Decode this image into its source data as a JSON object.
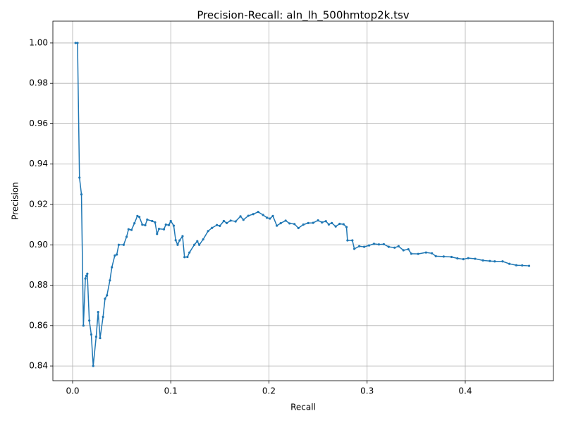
{
  "chart_data": {
    "type": "line",
    "title": "Precision-Recall: aln_lh_500hmtop2k.tsv",
    "x_label": "Recall",
    "y_label": "Precision",
    "xlim": [
      -0.0201,
      0.4898
    ],
    "ylim": [
      0.8327,
      1.0108
    ],
    "xticks": [
      {
        "value": 0,
        "label": "0.0"
      },
      0.1,
      0.2,
      0.3,
      0.4
    ],
    "yticks": [
      0.84,
      0.86,
      0.88,
      {
        "value": 0.9,
        "label": "0.90"
      },
      0.92,
      0.94,
      0.96,
      0.98,
      {
        "value": 1.0,
        "label": "1.00"
      }
    ],
    "grid": true,
    "markers": true,
    "series": [
      {
        "color": "#1f77b4",
        "x": [
          0.003,
          0.005,
          0.007,
          0.009,
          0.011,
          0.013,
          0.014,
          0.015,
          0.017,
          0.019,
          0.021,
          0.024,
          0.026,
          0.028,
          0.031,
          0.033,
          0.035,
          0.038,
          0.04,
          0.043,
          0.045,
          0.047,
          0.052,
          0.055,
          0.057,
          0.06,
          0.063,
          0.066,
          0.068,
          0.071,
          0.074,
          0.076,
          0.081,
          0.084,
          0.086,
          0.088,
          0.093,
          0.095,
          0.098,
          0.1,
          0.103,
          0.105,
          0.107,
          0.109,
          0.112,
          0.114,
          0.117,
          0.119,
          0.124,
          0.127,
          0.129,
          0.133,
          0.138,
          0.142,
          0.147,
          0.15,
          0.154,
          0.157,
          0.161,
          0.166,
          0.171,
          0.174,
          0.179,
          0.184,
          0.189,
          0.194,
          0.198,
          0.201,
          0.204,
          0.208,
          0.212,
          0.217,
          0.221,
          0.226,
          0.23,
          0.235,
          0.24,
          0.245,
          0.25,
          0.254,
          0.258,
          0.261,
          0.264,
          0.268,
          0.272,
          0.276,
          0.279,
          0.28,
          0.285,
          0.287,
          0.292,
          0.297,
          0.302,
          0.307,
          0.312,
          0.317,
          0.322,
          0.328,
          0.332,
          0.337,
          0.342,
          0.345,
          0.352,
          0.36,
          0.366,
          0.37,
          0.378,
          0.386,
          0.392,
          0.398,
          0.403,
          0.41,
          0.418,
          0.425,
          0.43,
          0.438,
          0.445,
          0.452,
          0.458,
          0.465
        ],
        "values": [
          1.0,
          1.0,
          0.9333,
          0.925,
          0.86,
          0.8833,
          0.8846,
          0.8857,
          0.8625,
          0.8556,
          0.84,
          0.8545,
          0.8667,
          0.8538,
          0.8643,
          0.8733,
          0.875,
          0.8824,
          0.8889,
          0.8947,
          0.8952,
          0.9,
          0.9,
          0.904,
          0.9077,
          0.9074,
          0.9107,
          0.9143,
          0.9138,
          0.91,
          0.9097,
          0.9125,
          0.9118,
          0.9111,
          0.9054,
          0.9079,
          0.9077,
          0.91,
          0.9098,
          0.9118,
          0.9095,
          0.9023,
          0.9,
          0.9022,
          0.9043,
          0.8939,
          0.894,
          0.8962,
          0.9,
          0.9018,
          0.9,
          0.9027,
          0.9068,
          0.9084,
          0.9098,
          0.9094,
          0.9118,
          0.9108,
          0.912,
          0.9116,
          0.9141,
          0.9124,
          0.9144,
          0.9152,
          0.9163,
          0.9148,
          0.9134,
          0.913,
          0.9143,
          0.9095,
          0.9107,
          0.912,
          0.9106,
          0.9103,
          0.9083,
          0.91,
          0.9108,
          0.9109,
          0.9121,
          0.9111,
          0.9117,
          0.9101,
          0.9108,
          0.9091,
          0.9104,
          0.9102,
          0.9088,
          0.9022,
          0.9022,
          0.898,
          0.8993,
          0.899,
          0.8997,
          0.9005,
          0.9002,
          0.9003,
          0.899,
          0.8986,
          0.8993,
          0.8973,
          0.8978,
          0.8956,
          0.8955,
          0.8962,
          0.8958,
          0.8944,
          0.8942,
          0.894,
          0.8933,
          0.8929,
          0.8934,
          0.8931,
          0.8923,
          0.892,
          0.8918,
          0.8918,
          0.8906,
          0.8899,
          0.8898,
          0.8896
        ]
      }
    ]
  }
}
